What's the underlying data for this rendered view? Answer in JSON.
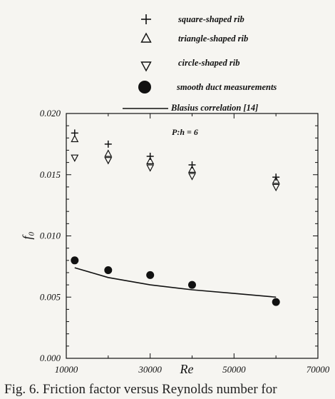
{
  "chart_data": {
    "type": "scatter",
    "title": "",
    "xlabel": "Re",
    "ylabel": "f₀",
    "xlim": [
      10000,
      70000
    ],
    "ylim": [
      0.0,
      0.02
    ],
    "x_tick_labels": [
      "10000",
      "30000",
      "50000",
      "70000"
    ],
    "x_tick_values": [
      10000,
      30000,
      50000,
      70000
    ],
    "y_tick_labels": [
      "0.000",
      "0.005",
      "0.010",
      "0.015",
      "0.020"
    ],
    "y_tick_values": [
      0.0,
      0.005,
      0.01,
      0.015,
      0.02
    ],
    "grid": false,
    "legend_position": "top",
    "annotation": "P:h = 6",
    "series": [
      {
        "name": "square-shaped rib",
        "marker": "plus",
        "x": [
          12000,
          20000,
          30000,
          40000,
          60000
        ],
        "y": [
          0.0184,
          0.0175,
          0.0165,
          0.0158,
          0.0148
        ]
      },
      {
        "name": "triangle-shaped rib",
        "marker": "triangle-up",
        "x": [
          12000,
          20000,
          30000,
          40000,
          60000
        ],
        "y": [
          0.0179,
          0.0167,
          0.0161,
          0.0154,
          0.0145
        ]
      },
      {
        "name": "circle-shaped rib",
        "marker": "triangle-down",
        "x": [
          12000,
          20000,
          30000,
          40000,
          60000
        ],
        "y": [
          0.0164,
          0.0162,
          0.0156,
          0.0149,
          0.014
        ]
      },
      {
        "name": "smooth duct measurements",
        "marker": "filled-circle",
        "x": [
          12000,
          20000,
          30000,
          40000,
          60000
        ],
        "y": [
          0.008,
          0.0072,
          0.0068,
          0.006,
          0.0046
        ]
      },
      {
        "name": "Blasius correlation [14]",
        "marker": "line",
        "x": [
          12000,
          20000,
          30000,
          40000,
          50000,
          60000
        ],
        "y": [
          0.0074,
          0.0066,
          0.006,
          0.0056,
          0.0053,
          0.005
        ]
      }
    ]
  },
  "caption": "Fig. 6. Friction factor versus Reynolds number for"
}
